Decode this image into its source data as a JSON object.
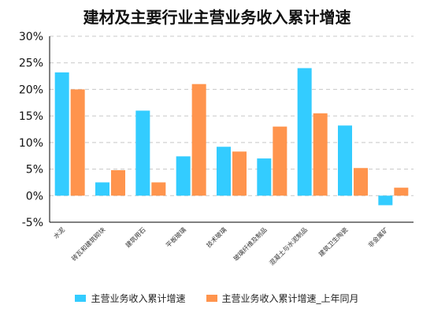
{
  "chart_data": {
    "type": "bar",
    "title": "建材及主要行业主营业务收入累计增速",
    "categories": [
      "水泥",
      "砖瓦和建筑砌块",
      "建筑用石",
      "平板玻璃",
      "技术玻璃",
      "玻璃纤维及制品",
      "混凝土与水泥制品",
      "建筑卫生陶瓷",
      "非金属矿"
    ],
    "series": [
      {
        "name": "主营业务收入累计增速",
        "color": "#33ccff",
        "values": [
          23.2,
          2.5,
          16.0,
          7.4,
          9.2,
          7.0,
          24.0,
          13.2,
          -1.8
        ]
      },
      {
        "name": "主营业务收入累计增速_上年同月",
        "color": "#ff944d",
        "values": [
          20.0,
          4.8,
          2.5,
          21.0,
          8.3,
          13.0,
          15.5,
          5.2,
          1.5
        ]
      }
    ],
    "ylim": [
      -5,
      30
    ],
    "yticks": [
      -5,
      0,
      5,
      10,
      15,
      20,
      25,
      30
    ],
    "ytick_labels": [
      "-5%",
      "0%",
      "5%",
      "10%",
      "15%",
      "20%",
      "25%",
      "30%"
    ],
    "grid": true,
    "legend_position": "bottom"
  }
}
